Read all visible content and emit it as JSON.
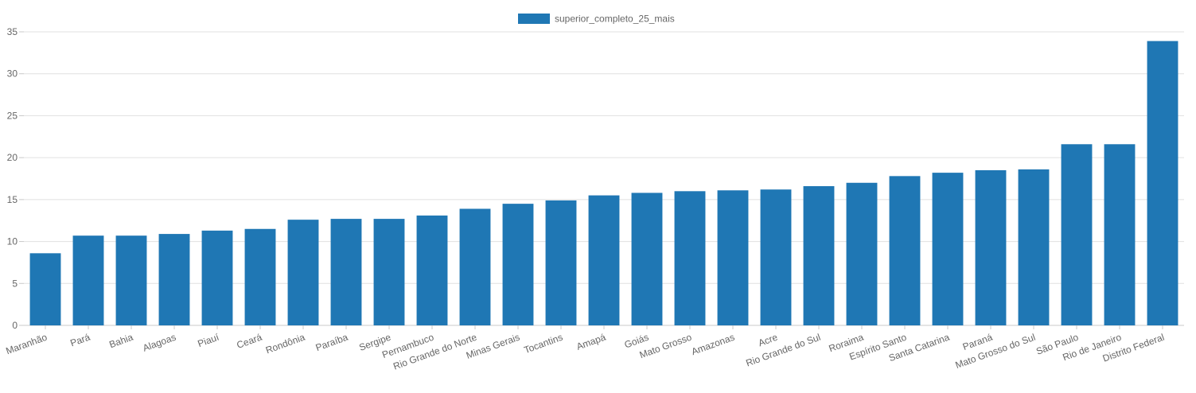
{
  "colors": {
    "bar": "#1f77b4",
    "grid": "#e1e1e1",
    "axis": "#c8c8c8",
    "text": "#666666"
  },
  "chart_data": {
    "type": "bar",
    "legend": {
      "position": "top-center",
      "entries": [
        "superior_completo_25_mais"
      ]
    },
    "categories": [
      "Maranhão",
      "Pará",
      "Bahia",
      "Alagoas",
      "Piauí",
      "Ceará",
      "Rondônia",
      "Paraíba",
      "Sergipe",
      "Pernambuco",
      "Rio Grande do Norte",
      "Minas Gerais",
      "Tocantins",
      "Amapá",
      "Goiás",
      "Mato Grosso",
      "Amazonas",
      "Acre",
      "Rio Grande do Sul",
      "Roraima",
      "Espírito Santo",
      "Santa Catarina",
      "Paraná",
      "Mato Grosso do Sul",
      "São Paulo",
      "Rio de Janeiro",
      "Distrito Federal"
    ],
    "series": [
      {
        "name": "superior_completo_25_mais",
        "values": [
          8.6,
          10.7,
          10.7,
          10.9,
          11.3,
          11.5,
          12.6,
          12.7,
          12.7,
          13.1,
          13.9,
          14.5,
          14.9,
          15.5,
          15.8,
          16.0,
          16.1,
          16.2,
          16.6,
          17.0,
          17.8,
          18.2,
          18.5,
          18.6,
          21.6,
          21.6,
          33.9
        ]
      }
    ],
    "y_ticks": [
      "0",
      "5",
      "10",
      "15",
      "20",
      "25",
      "30",
      "35"
    ],
    "ylim": [
      0,
      35
    ],
    "grid": true
  }
}
